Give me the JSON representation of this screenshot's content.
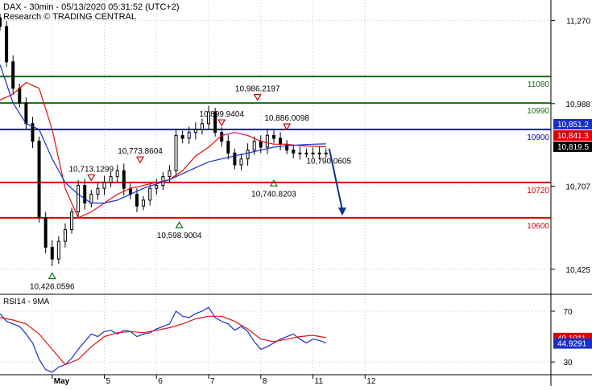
{
  "header": {
    "title": "DAX - 30min - 05/13/2020 05:31:52 (UTC+2)",
    "subtitle": "Research © TRADING CENTRAL"
  },
  "colors": {
    "background": "#ffffff",
    "grid": "#c8c8c8",
    "candle": "#000000",
    "ma_red": "#e01010",
    "ma_blue": "#1a2fc8",
    "support_green": "#107010",
    "level_blue": "#0000cc",
    "level_red": "#dd0000",
    "arrow": "#0c2f8a",
    "marker_red": "#cc0000",
    "marker_green": "#107010",
    "rsi_line": "#1a2fc8",
    "rsi_ma": "#e01010"
  },
  "chart_data": [
    {
      "type": "candlestick",
      "instrument": "DAX",
      "timeframe": "30min",
      "ylim": [
        10340,
        11340
      ],
      "y_ticks": [
        10425,
        10707,
        10988,
        11270
      ],
      "y_tick_labels": [
        "10,425",
        "10,707",
        "10,988",
        "11,270"
      ],
      "x_tick_labels": [
        "May",
        "5",
        "6",
        "7",
        "8",
        "11",
        "12"
      ],
      "x_ticks": [
        0,
        16,
        32,
        48,
        64,
        80,
        96
      ],
      "x_range": [
        -16,
        153
      ],
      "grid": true,
      "horizontal_levels": [
        {
          "label": "11080",
          "value": 11080,
          "color": "#107010"
        },
        {
          "label": "10990",
          "value": 10990,
          "color": "#107010"
        },
        {
          "label": "10900",
          "value": 10900,
          "color": "#0000cc"
        },
        {
          "label": "10720",
          "value": 10720,
          "color": "#dd0000"
        },
        {
          "label": "10600",
          "value": 10600,
          "color": "#dd0000"
        }
      ],
      "price_tags": [
        {
          "label": "10,851.2",
          "value": 10851.2,
          "bg": "#1a2fc8",
          "fg": "#ffffff"
        },
        {
          "label": "10,841.3",
          "value": 10841.3,
          "bg": "#dd0000",
          "fg": "#ffffff"
        },
        {
          "label": "10,819.5",
          "value": 10819.5,
          "bg": "#000000",
          "fg": "#ffffff"
        }
      ],
      "annotations": [
        {
          "text": "10,986.2197",
          "x": 63,
          "value": 10986.2197,
          "kind": "high"
        },
        {
          "text": "10,899.9404",
          "x": 52,
          "value": 10899.9404,
          "kind": "high"
        },
        {
          "text": "10,886.0098",
          "x": 72,
          "value": 10886.0098,
          "kind": "high"
        },
        {
          "text": "10,773.8604",
          "x": 27,
          "value": 10773.8604,
          "kind": "high"
        },
        {
          "text": "10,713.1299",
          "x": 12,
          "value": 10713.1299,
          "kind": "high"
        },
        {
          "text": "10,740.8203",
          "x": 68,
          "value": 10740.8203,
          "kind": "low"
        },
        {
          "text": "10,598.9004",
          "x": 39,
          "value": 10598.9004,
          "kind": "low"
        },
        {
          "text": "10,426.0596",
          "x": 0,
          "value": 10426.0596,
          "kind": "low"
        },
        {
          "text": "10,790.0605",
          "x": 78,
          "value": 10790.0605,
          "kind": "level"
        }
      ],
      "forecast_arrow": {
        "from": [
          85,
          10835
        ],
        "to": [
          89,
          10610
        ]
      },
      "series": [
        {
          "name": "close",
          "x": [
            -16,
            -14,
            -12,
            -10,
            -8,
            -6,
            -4,
            -2,
            0,
            2,
            4,
            6,
            8,
            10,
            12,
            14,
            16,
            18,
            20,
            22,
            24,
            26,
            28,
            30,
            32,
            34,
            36,
            38,
            40,
            42,
            44,
            46,
            48,
            50,
            52,
            54,
            56,
            58,
            60,
            62,
            64,
            66,
            68,
            70,
            72,
            74,
            76,
            78,
            80,
            82,
            84
          ],
          "values": [
            11250,
            11130,
            11040,
            10990,
            10920,
            10860,
            10600,
            10500,
            10460,
            10520,
            10560,
            10620,
            10710,
            10650,
            10680,
            10700,
            10720,
            10740,
            10760,
            10700,
            10680,
            10640,
            10660,
            10700,
            10710,
            10740,
            10760,
            10880,
            10870,
            10890,
            10900,
            10920,
            10960,
            10890,
            10860,
            10820,
            10780,
            10800,
            10830,
            10860,
            10840,
            10880,
            10870,
            10850,
            10830,
            10820,
            10820,
            10820,
            10820,
            10820,
            10819.5
          ]
        },
        {
          "name": "ma_red",
          "x": [
            -16,
            -12,
            -8,
            -4,
            0,
            4,
            8,
            12,
            16,
            20,
            24,
            28,
            32,
            36,
            40,
            44,
            48,
            52,
            56,
            60,
            64,
            68,
            72,
            76,
            80,
            84
          ],
          "values": [
            11000,
            11020,
            11060,
            11040,
            10900,
            10700,
            10600,
            10620,
            10650,
            10680,
            10700,
            10710,
            10720,
            10730,
            10760,
            10810,
            10840,
            10880,
            10890,
            10880,
            10860,
            10850,
            10850,
            10845,
            10843,
            10841.3
          ]
        },
        {
          "name": "ma_blue",
          "x": [
            -16,
            -12,
            -8,
            -4,
            0,
            4,
            8,
            12,
            16,
            20,
            24,
            28,
            32,
            36,
            40,
            44,
            48,
            52,
            56,
            60,
            64,
            68,
            72,
            76,
            80,
            84
          ],
          "values": [
            11120,
            10990,
            10920,
            10900,
            10800,
            10720,
            10680,
            10650,
            10650,
            10660,
            10680,
            10700,
            10715,
            10730,
            10750,
            10770,
            10790,
            10800,
            10810,
            10820,
            10830,
            10840,
            10845,
            10848,
            10850,
            10851.2
          ]
        }
      ]
    },
    {
      "type": "line",
      "title": "RSI14 - 9MA",
      "ylim": [
        20,
        82
      ],
      "y_ticks": [
        30,
        70
      ],
      "y_tick_labels": [
        "30",
        "70"
      ],
      "grid": true,
      "value_tags": [
        {
          "label": "49.1911",
          "value": 49.1911,
          "bg": "#dd0000",
          "fg": "#ffffff"
        },
        {
          "label": "44.9291",
          "value": 44.9291,
          "bg": "#1a2fc8",
          "fg": "#ffffff"
        }
      ],
      "series": [
        {
          "name": "RSI14",
          "x": [
            -16,
            -14,
            -12,
            -10,
            -8,
            -6,
            -4,
            -2,
            0,
            2,
            4,
            6,
            8,
            10,
            12,
            14,
            16,
            18,
            20,
            22,
            24,
            26,
            28,
            30,
            32,
            34,
            36,
            38,
            40,
            42,
            44,
            46,
            48,
            50,
            52,
            54,
            56,
            58,
            60,
            62,
            64,
            66,
            68,
            70,
            72,
            74,
            76,
            78,
            80,
            82,
            84
          ],
          "values": [
            68,
            62,
            60,
            58,
            52,
            45,
            32,
            24,
            22,
            26,
            28,
            33,
            40,
            46,
            52,
            50,
            54,
            55,
            52,
            55,
            54,
            50,
            52,
            53,
            56,
            58,
            60,
            70,
            66,
            65,
            68,
            70,
            73,
            65,
            62,
            60,
            55,
            58,
            54,
            46,
            40,
            42,
            45,
            48,
            50,
            52,
            48,
            45,
            48,
            47,
            44.93
          ]
        },
        {
          "name": "MA9",
          "x": [
            -16,
            -12,
            -8,
            -4,
            0,
            4,
            8,
            12,
            16,
            20,
            24,
            28,
            32,
            36,
            40,
            44,
            48,
            52,
            56,
            60,
            64,
            68,
            72,
            76,
            80,
            84
          ],
          "values": [
            65,
            63,
            60,
            52,
            40,
            28,
            32,
            42,
            50,
            53,
            54,
            53,
            55,
            57,
            60,
            64,
            66,
            66,
            62,
            56,
            48,
            46,
            48,
            50,
            51,
            49.19
          ]
        }
      ]
    }
  ]
}
